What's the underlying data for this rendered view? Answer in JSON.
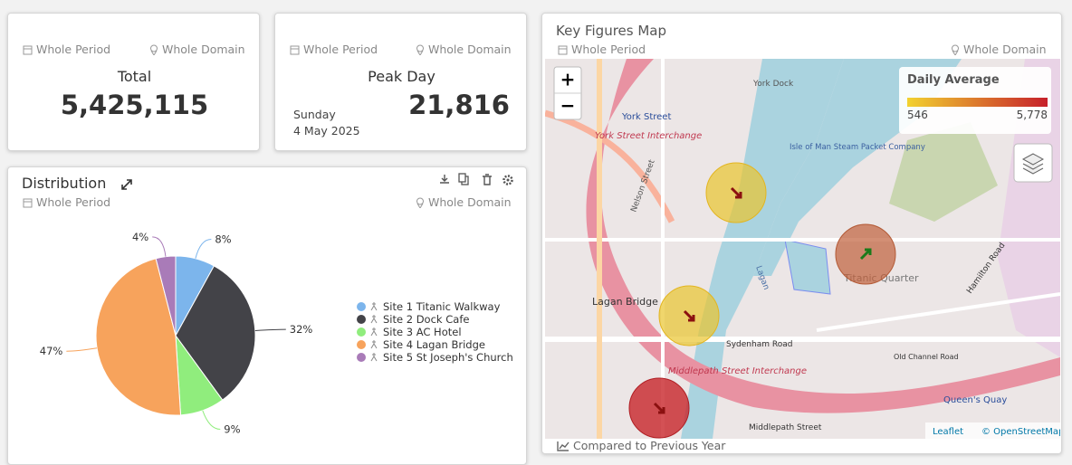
{
  "total_card": {
    "period": "Whole Period",
    "domain": "Whole Domain",
    "label": "Total",
    "value": "5,425,115"
  },
  "peak_card": {
    "period": "Whole Period",
    "domain": "Whole Domain",
    "label": "Peak Day",
    "weekday": "Sunday",
    "date": "4 May 2025",
    "value": "21,816"
  },
  "distribution": {
    "title": "Distribution",
    "period": "Whole Period",
    "domain": "Whole Domain",
    "chart": {
      "type": "pie",
      "categories": [
        "Site 1 Titanic Walkway",
        "Site 2 Dock Cafe",
        "Site 3 AC Hotel",
        "Site 4 Lagan Bridge",
        "Site 5 St Joseph's Church"
      ],
      "values": [
        8,
        32,
        9,
        47,
        4
      ],
      "value_labels": [
        "8%",
        "32%",
        "9%",
        "47%",
        "4%"
      ],
      "colors": [
        "#7cb5ec",
        "#434348",
        "#90ed7d",
        "#f7a35c",
        "#a97bb8"
      ]
    }
  },
  "map": {
    "title": "Key Figures Map",
    "period": "Whole Period",
    "domain": "Whole Domain",
    "zoom_in": "+",
    "zoom_out": "−",
    "legend": {
      "title": "Daily Average",
      "min": "546",
      "max": "5,778"
    },
    "labels": [
      "York Street",
      "York Street Interchange",
      "York Dock",
      "Isle of Man Steam Packet Company",
      "Nelson Street",
      "Lagan",
      "Titanic Quarter",
      "Lagan Bridge",
      "Sydenham Road",
      "Middlepath Street Interchange",
      "Old Channel Road",
      "Middlepath Street",
      "Queen's Quay",
      "Hamilton Road"
    ],
    "footer": "Compared to  Previous Year",
    "attribution_leaflet": "Leaflet",
    "attribution_osm": "© OpenStreetMap"
  }
}
